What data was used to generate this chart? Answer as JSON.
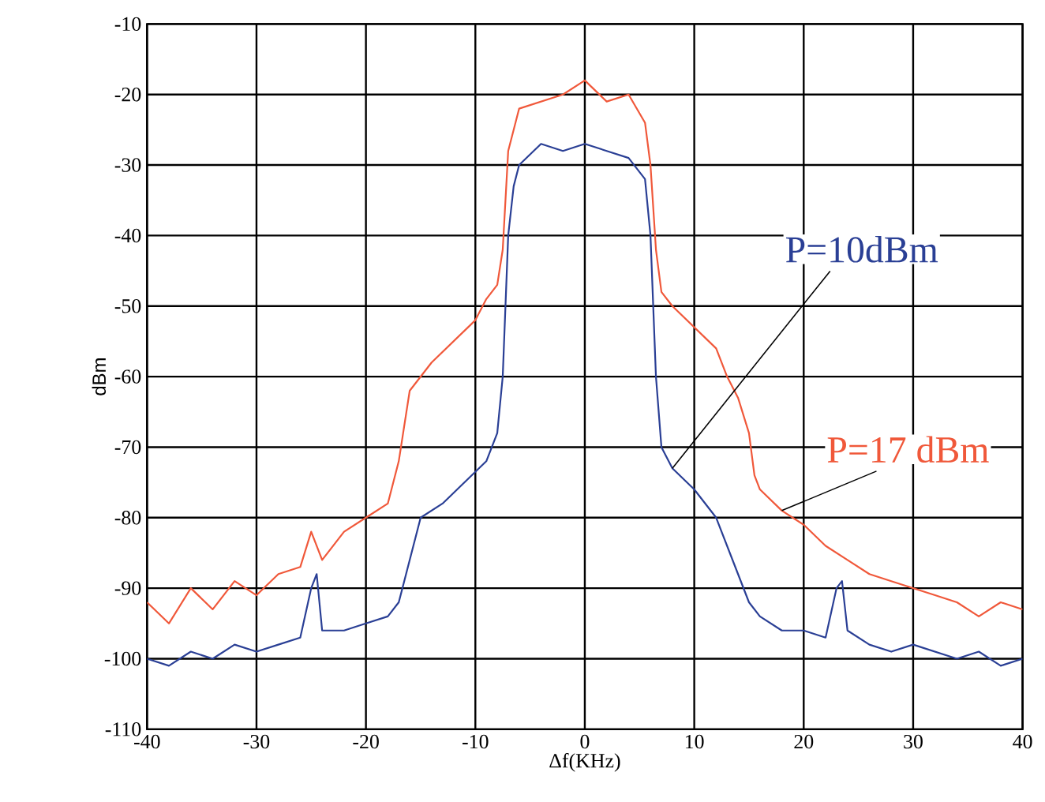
{
  "chart_data": {
    "type": "line",
    "xlabel": "Δf(KHz)",
    "ylabel": "dBm",
    "xlim": [
      -40,
      40
    ],
    "ylim": [
      -110,
      -10
    ],
    "xticks": [
      -40,
      -30,
      -20,
      -10,
      0,
      10,
      20,
      30,
      40
    ],
    "yticks": [
      -110,
      -100,
      -90,
      -80,
      -70,
      -60,
      -50,
      -40,
      -30,
      -20,
      -10
    ],
    "grid": true,
    "marker": "none",
    "line_style": "solid",
    "series": [
      {
        "name": "P=17 dBm",
        "color": "#f0583a",
        "x": [
          -40,
          -38,
          -36,
          -34,
          -32,
          -30,
          -28,
          -26,
          -25,
          -24,
          -22,
          -20,
          -18,
          -17,
          -16,
          -14,
          -12,
          -10,
          -9,
          -8,
          -7.5,
          -7,
          -6,
          -4,
          -2,
          0,
          2,
          4,
          5.5,
          6,
          6.5,
          7,
          8,
          10,
          12,
          13,
          14,
          15,
          15.5,
          16,
          18,
          20,
          22,
          24,
          26,
          28,
          30,
          32,
          34,
          36,
          38,
          40
        ],
        "values": [
          -92,
          -95,
          -90,
          -93,
          -89,
          -91,
          -88,
          -87,
          -82,
          -86,
          -82,
          -80,
          -78,
          -72,
          -62,
          -58,
          -55,
          -52,
          -49,
          -47,
          -42,
          -28,
          -22,
          -21,
          -20,
          -18,
          -21,
          -20,
          -24,
          -30,
          -42,
          -48,
          -50,
          -53,
          -56,
          -60,
          -63,
          -68,
          -74,
          -76,
          -79,
          -81,
          -84,
          -86,
          -88,
          -89,
          -90,
          -91,
          -92,
          -94,
          -92,
          -93
        ]
      },
      {
        "name": "P=10dBm",
        "color": "#2a3f95",
        "x": [
          -40,
          -38,
          -36,
          -34,
          -32,
          -30,
          -28,
          -26,
          -25,
          -24.5,
          -24,
          -22,
          -20,
          -18,
          -17,
          -16,
          -15,
          -13,
          -11,
          -9,
          -8,
          -7.5,
          -7,
          -6.5,
          -6,
          -4,
          -2,
          0,
          2,
          4,
          5.5,
          6,
          6.5,
          7,
          8,
          10,
          12,
          13,
          14,
          15,
          16,
          18,
          20,
          22,
          23,
          23.5,
          24,
          26,
          28,
          30,
          32,
          34,
          36,
          38,
          40
        ],
        "values": [
          -100,
          -101,
          -99,
          -100,
          -98,
          -99,
          -98,
          -97,
          -90,
          -88,
          -96,
          -96,
          -95,
          -94,
          -92,
          -86,
          -80,
          -78,
          -75,
          -72,
          -68,
          -60,
          -40,
          -33,
          -30,
          -27,
          -28,
          -27,
          -28,
          -29,
          -32,
          -40,
          -60,
          -70,
          -73,
          -76,
          -80,
          -84,
          -88,
          -92,
          -94,
          -96,
          -96,
          -97,
          -90,
          -89,
          -96,
          -98,
          -99,
          -98,
          -99,
          -100,
          -99,
          -101,
          -100
        ]
      }
    ]
  }
}
